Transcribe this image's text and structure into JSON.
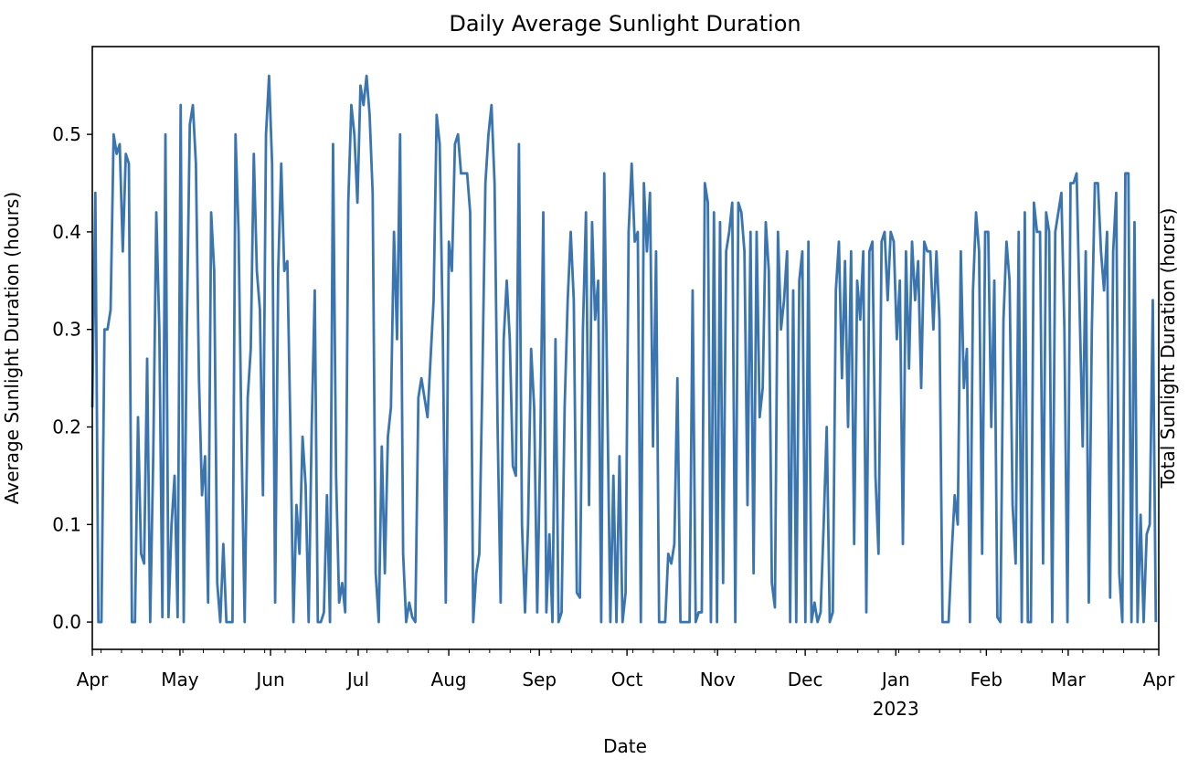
{
  "chart_data": {
    "type": "line",
    "title": "Daily Average Sunlight Duration",
    "xlabel": "Date",
    "ylabel": "Average Sunlight Duration (hours)",
    "ylabel_right": "Total Sunlight Duration (hours)",
    "x_start": "2022-04-01",
    "x_end": "2023-04-01",
    "xlim": [
      "2022-04-01",
      "2023-04-01"
    ],
    "ylim": [
      -0.028,
      0.59
    ],
    "yticks": [
      0.0,
      0.1,
      0.2,
      0.3,
      0.4,
      0.5
    ],
    "ytick_labels": [
      "0.0",
      "0.1",
      "0.2",
      "0.3",
      "0.4",
      "0.5"
    ],
    "xtick_labels": [
      "Apr",
      "May",
      "Jun",
      "Jul",
      "Aug",
      "Sep",
      "Oct",
      "Nov",
      "Dec",
      "Jan",
      "Feb",
      "Mar",
      "Apr"
    ],
    "xtick_year_label": "2023",
    "grid": false,
    "legend": "none",
    "series": [
      {
        "color": "#3a75b0",
        "values": [
          0.22,
          0.44,
          0.0,
          0.0,
          0.3,
          0.3,
          0.32,
          0.5,
          0.48,
          0.49,
          0.38,
          0.48,
          0.47,
          0.0,
          0.0,
          0.21,
          0.07,
          0.06,
          0.27,
          0.0,
          0.17,
          0.42,
          0.3,
          0.005,
          0.5,
          0.005,
          0.1,
          0.15,
          0.005,
          0.53,
          0.0,
          0.3,
          0.51,
          0.53,
          0.47,
          0.25,
          0.13,
          0.17,
          0.02,
          0.42,
          0.36,
          0.04,
          0.0,
          0.08,
          0.0,
          0.0,
          0.0,
          0.5,
          0.4,
          0.18,
          0.0,
          0.23,
          0.28,
          0.48,
          0.36,
          0.32,
          0.13,
          0.5,
          0.56,
          0.47,
          0.02,
          0.36,
          0.47,
          0.36,
          0.37,
          0.2,
          0.0,
          0.12,
          0.07,
          0.19,
          0.14,
          0.0,
          0.2,
          0.34,
          0.0,
          0.0,
          0.01,
          0.13,
          0.0,
          0.49,
          0.15,
          0.02,
          0.04,
          0.01,
          0.43,
          0.53,
          0.5,
          0.43,
          0.55,
          0.53,
          0.56,
          0.52,
          0.44,
          0.05,
          0.0,
          0.18,
          0.05,
          0.19,
          0.22,
          0.4,
          0.29,
          0.5,
          0.07,
          0.0,
          0.02,
          0.005,
          0.0,
          0.23,
          0.25,
          0.23,
          0.21,
          0.27,
          0.33,
          0.52,
          0.49,
          0.3,
          0.02,
          0.39,
          0.36,
          0.49,
          0.5,
          0.46,
          0.46,
          0.46,
          0.42,
          0.0,
          0.05,
          0.07,
          0.25,
          0.45,
          0.5,
          0.53,
          0.45,
          0.2,
          0.02,
          0.29,
          0.35,
          0.29,
          0.16,
          0.15,
          0.49,
          0.1,
          0.01,
          0.1,
          0.28,
          0.22,
          0.01,
          0.18,
          0.42,
          0.01,
          0.09,
          0.0,
          0.29,
          0.0,
          0.01,
          0.22,
          0.33,
          0.4,
          0.33,
          0.03,
          0.025,
          0.3,
          0.42,
          0.12,
          0.41,
          0.31,
          0.35,
          0.0,
          0.46,
          0.23,
          0.0,
          0.15,
          0.0,
          0.17,
          0.0,
          0.03,
          0.4,
          0.47,
          0.39,
          0.4,
          0.0,
          0.45,
          0.38,
          0.44,
          0.18,
          0.38,
          0.0,
          0.0,
          0.0,
          0.07,
          0.06,
          0.08,
          0.25,
          0.0,
          0.0,
          0.0,
          0.0,
          0.34,
          0.0,
          0.01,
          0.01,
          0.45,
          0.43,
          0.0,
          0.42,
          0.0,
          0.41,
          0.04,
          0.38,
          0.4,
          0.43,
          0.0,
          0.43,
          0.42,
          0.38,
          0.12,
          0.4,
          0.05,
          0.4,
          0.21,
          0.24,
          0.41,
          0.36,
          0.04,
          0.015,
          0.4,
          0.3,
          0.33,
          0.38,
          0.0,
          0.34,
          0.0,
          0.35,
          0.38,
          0.0,
          0.39,
          0.0,
          0.02,
          0.0,
          0.01,
          0.1,
          0.2,
          0.0,
          0.01,
          0.34,
          0.39,
          0.25,
          0.37,
          0.2,
          0.38,
          0.08,
          0.35,
          0.31,
          0.38,
          0.01,
          0.38,
          0.39,
          0.15,
          0.07,
          0.39,
          0.4,
          0.33,
          0.4,
          0.39,
          0.29,
          0.35,
          0.08,
          0.38,
          0.26,
          0.39,
          0.33,
          0.37,
          0.24,
          0.39,
          0.38,
          0.38,
          0.3,
          0.38,
          0.31,
          0.0,
          0.0,
          0.0,
          0.07,
          0.13,
          0.1,
          0.38,
          0.24,
          0.28,
          0.0,
          0.34,
          0.42,
          0.38,
          0.07,
          0.4,
          0.4,
          0.2,
          0.35,
          0.005,
          0.0,
          0.31,
          0.39,
          0.35,
          0.12,
          0.06,
          0.4,
          0.0,
          0.42,
          0.0,
          0.0,
          0.43,
          0.4,
          0.4,
          0.06,
          0.42,
          0.4,
          0.0,
          0.4,
          0.42,
          0.44,
          0.3,
          0.0,
          0.45,
          0.45,
          0.46,
          0.32,
          0.18,
          0.38,
          0.02,
          0.3,
          0.45,
          0.45,
          0.38,
          0.34,
          0.4,
          0.025,
          0.38,
          0.44,
          0.05,
          0.0,
          0.46,
          0.46,
          0.0,
          0.41,
          0.0,
          0.11,
          0.0,
          0.09,
          0.1,
          0.33,
          0.0
        ]
      }
    ]
  }
}
